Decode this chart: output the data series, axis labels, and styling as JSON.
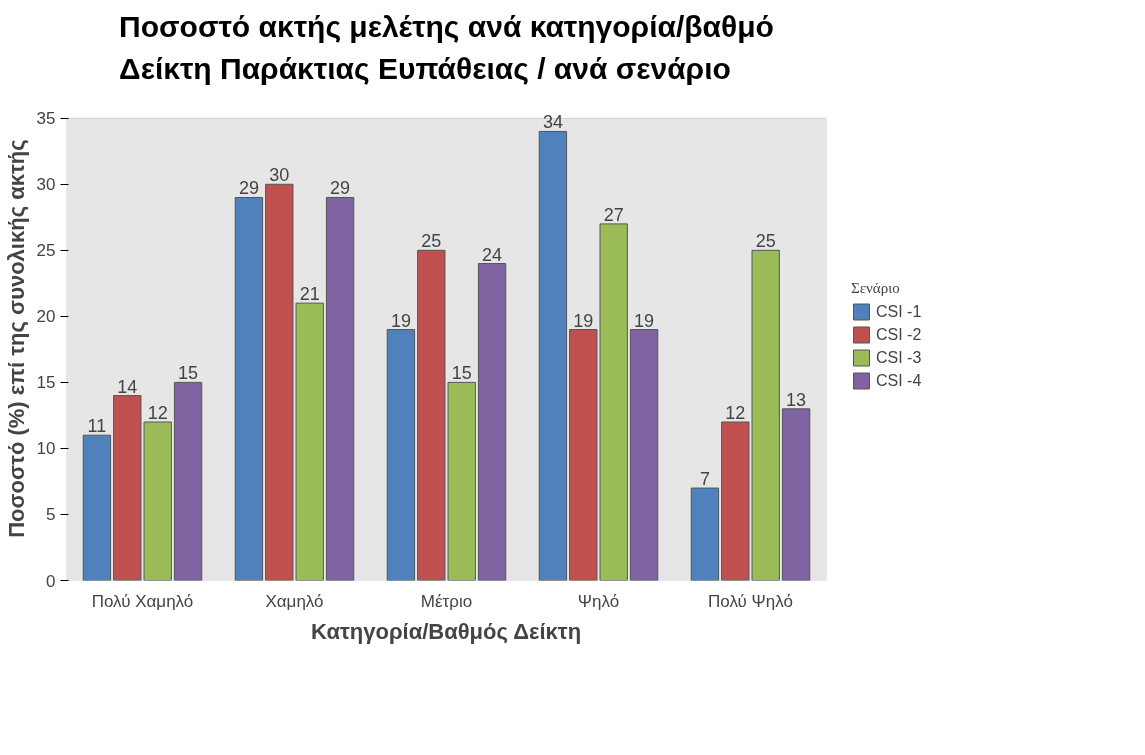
{
  "chart_data": {
    "type": "bar",
    "title": "Ποσοστό ακτής μελέτης ανά κατηγορία/βαθμό\nΔείκτη Παράκτιας Ευπάθειας / ανά σενάριο",
    "xlabel": "Κατηγορία/Βαθμός Δείκτη",
    "ylabel": "Ποσοστό (%) επί  της συνολικής ακτής",
    "legend_title": "Σενάριο",
    "categories": [
      "Πολύ Χαμηλό",
      "Χαμηλό",
      "Μέτριο",
      "Ψηλό",
      "Πολύ Ψηλό"
    ],
    "series": [
      {
        "name": "CSI -1",
        "color": "#4f81bd",
        "values": [
          11,
          29,
          19,
          34,
          7
        ]
      },
      {
        "name": "CSI -2",
        "color": "#c0504d",
        "values": [
          14,
          30,
          25,
          19,
          12
        ]
      },
      {
        "name": "CSI -3",
        "color": "#9bbb59",
        "values": [
          12,
          21,
          15,
          27,
          25
        ]
      },
      {
        "name": "CSI -4",
        "color": "#8064a2",
        "values": [
          15,
          29,
          24,
          19,
          13
        ]
      }
    ],
    "ylim": [
      0,
      35
    ],
    "yticks": [
      0,
      5,
      10,
      15,
      20,
      25,
      30,
      35
    ],
    "grid": false,
    "legend": "right",
    "data_labels": true
  }
}
